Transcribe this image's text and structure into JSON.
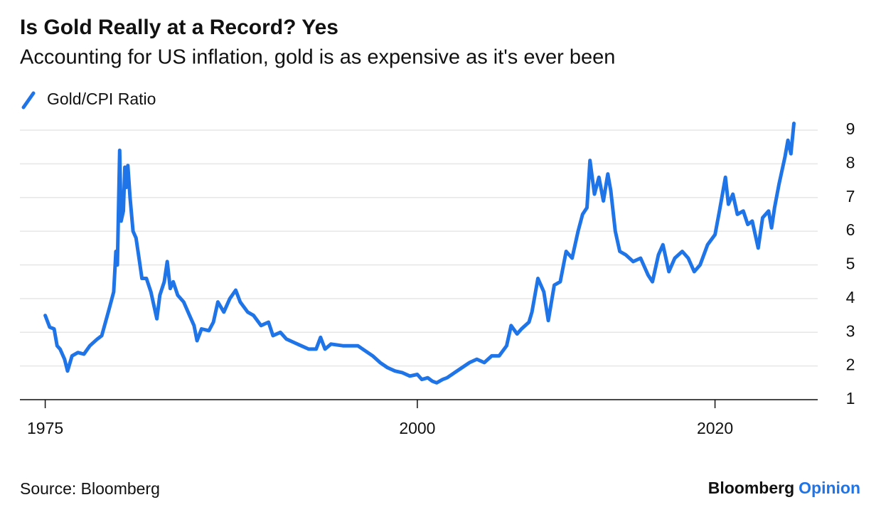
{
  "chart_data": {
    "type": "line",
    "title": "Is Gold Really at a Record? Yes",
    "subtitle": "Accounting for US inflation, gold is as expensive as it's ever been",
    "source": "Source: Bloomberg",
    "brand": "Bloomberg",
    "brand_product": "Opinion",
    "x": [
      1975.0,
      1975.3,
      1975.6,
      1975.8,
      1976.0,
      1976.3,
      1976.5,
      1976.8,
      1977.2,
      1977.6,
      1978.0,
      1978.5,
      1978.8,
      1979.3,
      1979.6,
      1979.75,
      1979.85,
      1980.0,
      1980.1,
      1980.25,
      1980.35,
      1980.45,
      1980.55,
      1980.7,
      1980.9,
      1981.1,
      1981.3,
      1981.5,
      1981.8,
      1982.1,
      1982.3,
      1982.5,
      1982.7,
      1983.0,
      1983.2,
      1983.4,
      1983.6,
      1983.9,
      1984.3,
      1984.7,
      1985.0,
      1985.2,
      1985.5,
      1986.0,
      1986.3,
      1986.6,
      1987.0,
      1987.4,
      1987.8,
      1988.1,
      1988.6,
      1989.0,
      1989.5,
      1990.0,
      1990.3,
      1990.8,
      1991.2,
      1991.7,
      1992.2,
      1992.7,
      1993.2,
      1993.5,
      1993.8,
      1994.2,
      1995.0,
      1996.0,
      1997.0,
      1997.5,
      1998.0,
      1998.5,
      1999.0,
      1999.5,
      2000.0,
      2000.3,
      2000.7,
      2001.0,
      2001.3,
      2001.7,
      2002.0,
      2002.5,
      2003.0,
      2003.5,
      2004.0,
      2004.5,
      2005.0,
      2005.5,
      2006.0,
      2006.3,
      2006.7,
      2007.0,
      2007.5,
      2007.7,
      2008.1,
      2008.5,
      2008.8,
      2009.2,
      2009.6,
      2010.0,
      2010.4,
      2010.8,
      2011.1,
      2011.4,
      2011.6,
      2011.9,
      2012.2,
      2012.5,
      2012.8,
      2013.0,
      2013.3,
      2013.6,
      2014.0,
      2014.5,
      2015.0,
      2015.5,
      2015.8,
      2016.2,
      2016.5,
      2016.9,
      2017.3,
      2017.8,
      2018.2,
      2018.6,
      2019.0,
      2019.5,
      2020.0,
      2020.3,
      2020.7,
      2020.9,
      2021.2,
      2021.5,
      2021.9,
      2022.2,
      2022.5,
      2022.9,
      2023.2,
      2023.6,
      2023.8,
      2024.0,
      2024.3,
      2024.7,
      2024.9,
      2025.1,
      2025.3
    ],
    "series": [
      {
        "name": "Gold/CPI Ratio",
        "color": "#1f74e8",
        "values": [
          3.5,
          3.15,
          3.1,
          2.6,
          2.5,
          2.2,
          1.85,
          2.3,
          2.4,
          2.35,
          2.6,
          2.8,
          2.9,
          3.7,
          4.2,
          5.4,
          5.0,
          8.4,
          6.3,
          6.6,
          7.9,
          7.3,
          7.95,
          7.0,
          6.0,
          5.8,
          5.2,
          4.6,
          4.6,
          4.2,
          3.8,
          3.4,
          4.1,
          4.5,
          5.1,
          4.3,
          4.5,
          4.1,
          3.9,
          3.5,
          3.2,
          2.75,
          3.1,
          3.05,
          3.3,
          3.9,
          3.6,
          4.0,
          4.25,
          3.9,
          3.6,
          3.5,
          3.2,
          3.3,
          2.9,
          3.0,
          2.8,
          2.7,
          2.6,
          2.5,
          2.5,
          2.85,
          2.5,
          2.65,
          2.6,
          2.6,
          2.3,
          2.1,
          1.95,
          1.85,
          1.8,
          1.7,
          1.75,
          1.6,
          1.65,
          1.55,
          1.5,
          1.6,
          1.65,
          1.8,
          1.95,
          2.1,
          2.2,
          2.1,
          2.3,
          2.3,
          2.6,
          3.2,
          2.95,
          3.1,
          3.3,
          3.6,
          4.6,
          4.2,
          3.35,
          4.4,
          4.5,
          5.4,
          5.2,
          6.0,
          6.5,
          6.7,
          8.1,
          7.1,
          7.6,
          6.9,
          7.7,
          7.2,
          6.0,
          5.4,
          5.3,
          5.1,
          5.2,
          4.7,
          4.5,
          5.3,
          5.6,
          4.8,
          5.2,
          5.4,
          5.2,
          4.8,
          5.0,
          5.6,
          5.9,
          6.6,
          7.6,
          6.8,
          7.1,
          6.5,
          6.6,
          6.2,
          6.3,
          5.5,
          6.4,
          6.6,
          6.1,
          6.7,
          7.4,
          8.2,
          8.7,
          8.3,
          9.2
        ]
      }
    ],
    "xlim": [
      1973.3,
      2026.9
    ],
    "ylim": [
      1,
      9
    ],
    "xticks": [
      1975,
      2000,
      2020
    ],
    "yticks": [
      1,
      2,
      3,
      4,
      5,
      6,
      7,
      8,
      9
    ],
    "grid": true
  }
}
